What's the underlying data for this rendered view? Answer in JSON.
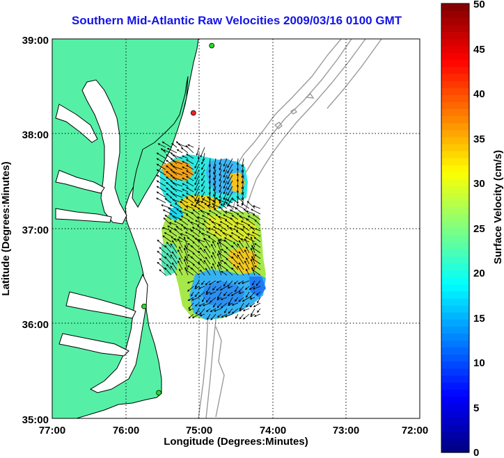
{
  "title": "Southern Mid-Atlantic Raw Velocities 2009/03/16 0100 GMT",
  "x_axis": {
    "label": "Longitude (Degrees:Minutes)",
    "ticks": [
      "77:00",
      "76:00",
      "75:00",
      "74:00",
      "73:00",
      "72:00"
    ]
  },
  "y_axis": {
    "label": "Latitude (Degrees:Minutes)",
    "ticks": [
      "39:00",
      "38:00",
      "37:00",
      "36:00",
      "35:00"
    ]
  },
  "colorbar": {
    "label": "Surface Velocity (cm/s)",
    "ticks": [
      "50",
      "45",
      "40",
      "35",
      "30",
      "25",
      "20",
      "15",
      "10",
      "5",
      "0"
    ],
    "colormap": "jet",
    "min": 0,
    "max": 50
  },
  "colors": {
    "land": "#55f0a6",
    "water": "#ffffff",
    "coastline": "#000000",
    "bathymetry": "#9a9a9a",
    "title": "#1414e6",
    "site_active": "#22dd22",
    "site_inactive": "#ee2222"
  },
  "stations": [
    {
      "status": "active",
      "lon": -74.83,
      "lat": 38.93
    },
    {
      "status": "inactive",
      "lon": -75.08,
      "lat": 38.22
    },
    {
      "status": "active",
      "lon": -75.75,
      "lat": 36.18
    },
    {
      "status": "active",
      "lon": -75.55,
      "lat": 35.27
    }
  ]
}
